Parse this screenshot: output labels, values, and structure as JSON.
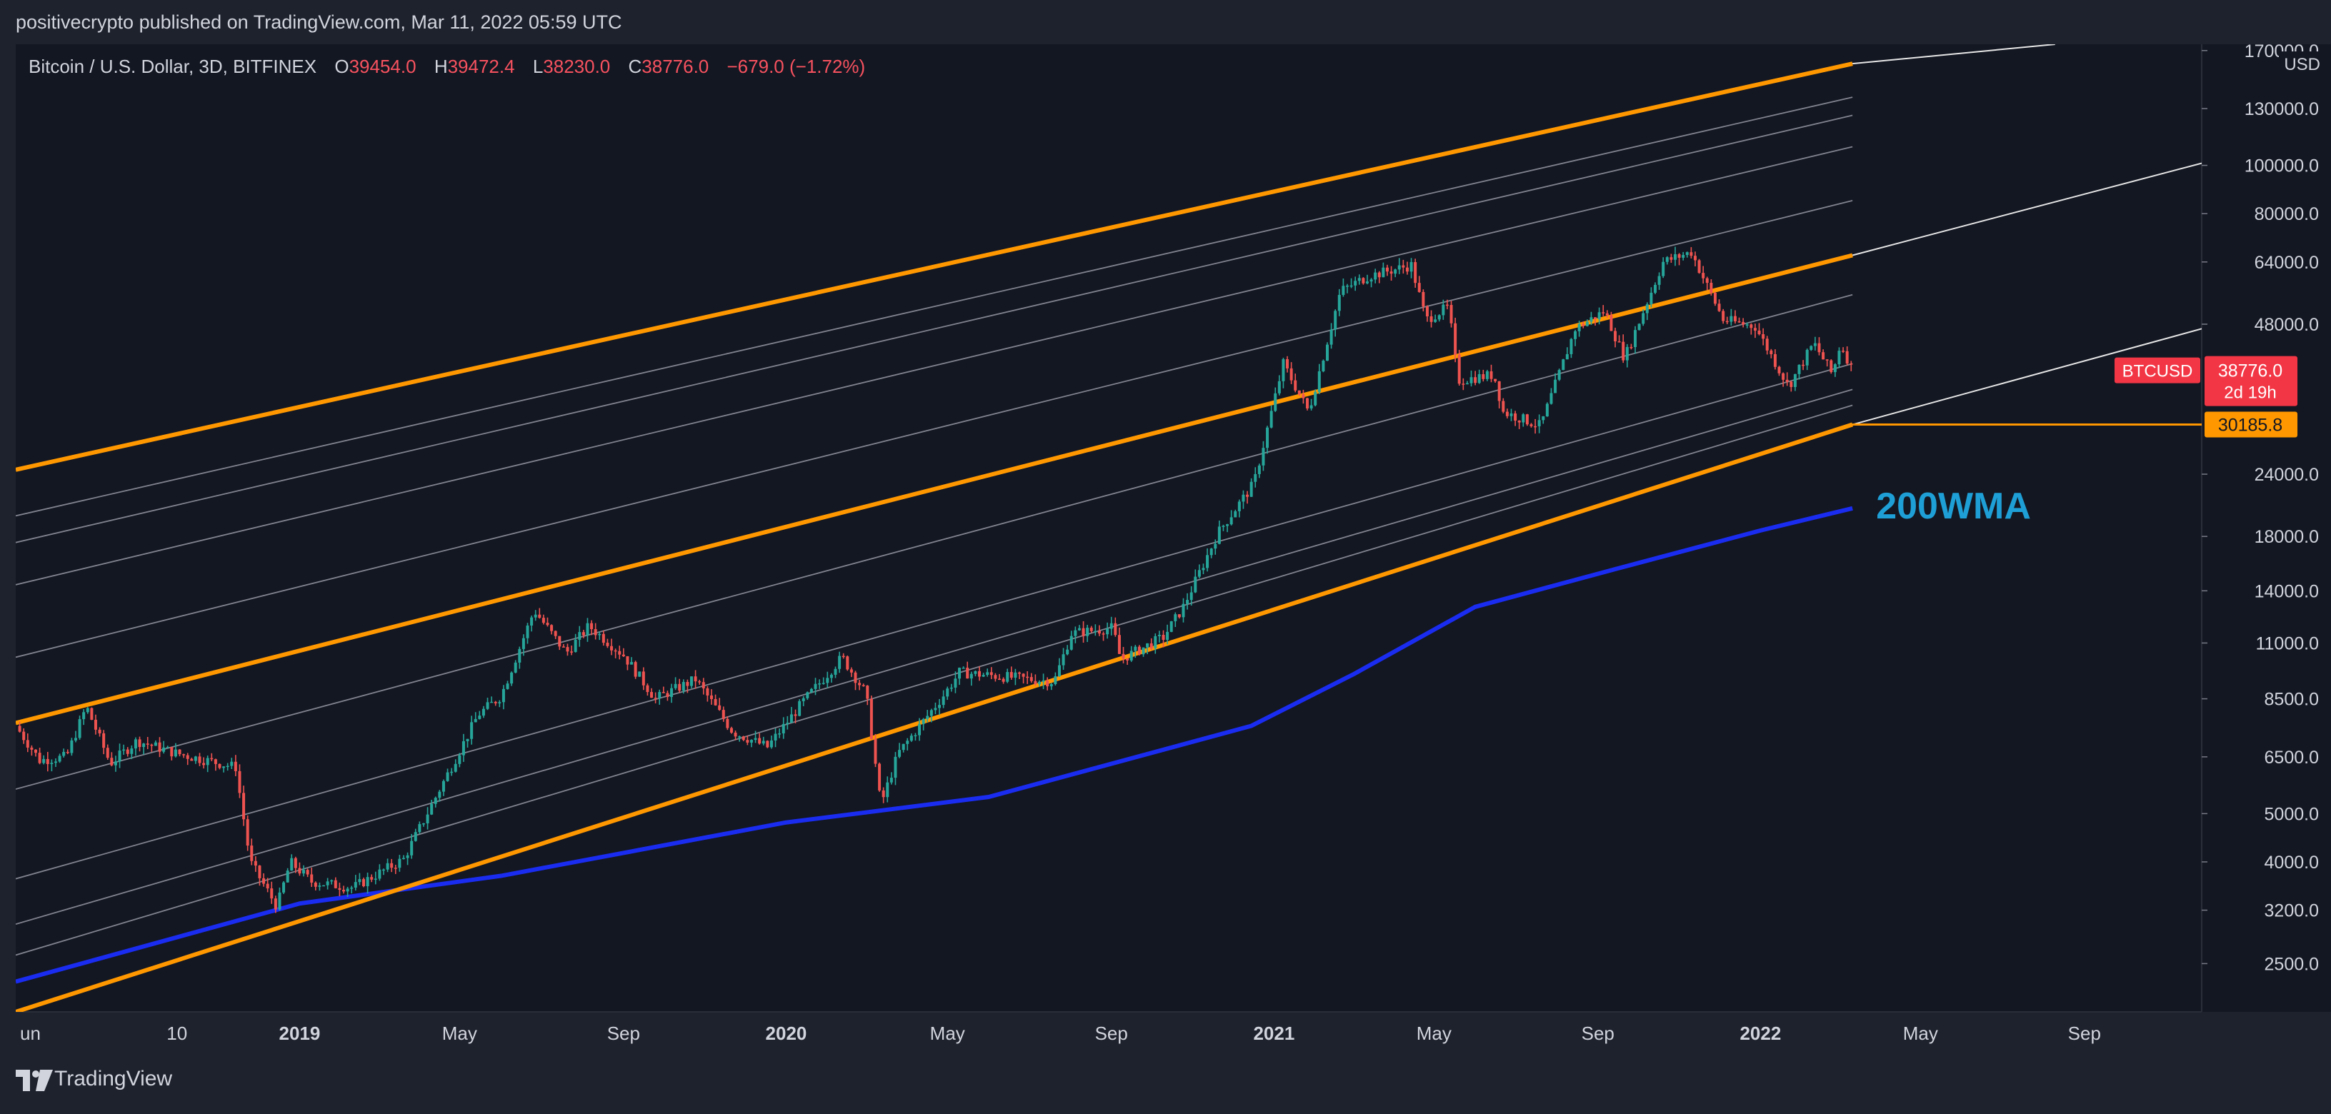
{
  "publisher_line": "positivecrypto published on TradingView.com, Mar 11, 2022 05:59 UTC",
  "symbol": {
    "title": "Bitcoin / U.S. Dollar, 3D, BITFINEX",
    "open_label": "O",
    "open": "39454.0",
    "high_label": "H",
    "high": "39472.4",
    "low_label": "L",
    "low": "38230.0",
    "close_label": "C",
    "close": "38776.0",
    "change": "−679.0 (−1.72%)"
  },
  "brand": "TradingView",
  "colors": {
    "background": "#131722",
    "frame": "#1e222d",
    "up": "#26a69a",
    "down": "#ef5350",
    "channel": "#ff9800",
    "inner_lines": "#9598a1",
    "wma": "#1a2cf0",
    "annotation": "#1e9fd6",
    "price_badge": "#f23645"
  },
  "chart_data": {
    "type": "candlestick",
    "x_axis": {
      "type": "time",
      "range": [
        "2018-06-02",
        "2022-11-28"
      ],
      "tick_labels": [
        "un",
        "10",
        "2019",
        "May",
        "Sep",
        "2020",
        "May",
        "Sep",
        "2021",
        "May",
        "Sep",
        "2022",
        "May",
        "Sep"
      ],
      "tick_dates": [
        "2018-06-01",
        "2018-10-01",
        "2019-01-01",
        "2019-05-01",
        "2019-09-01",
        "2020-01-01",
        "2020-05-01",
        "2020-09-01",
        "2021-01-01",
        "2021-05-01",
        "2021-09-01",
        "2022-01-01",
        "2022-05-01",
        "2022-09-01"
      ]
    },
    "y_axis": {
      "scale": "log",
      "unit": "USD",
      "range": [
        2000,
        175000
      ],
      "ticks": [
        2500,
        3200,
        4000,
        5000,
        6500,
        8500,
        11000,
        14000,
        18000,
        24000,
        30185.8,
        38776,
        48000,
        64000,
        80000,
        100000,
        130000,
        170000
      ],
      "tick_labels": [
        "2500.0",
        "3200.0",
        "4000.0",
        "5000.0",
        "6500.0",
        "8500.0",
        "11000.0",
        "14000.0",
        "18000.0",
        "24000.0",
        "30185.8",
        "38776.0",
        "48000.0",
        "64000.0",
        "80000.0",
        "100000.0",
        "130000.0",
        "170000.0"
      ]
    },
    "price_labels": {
      "symbol": "BTCUSD",
      "last_price": "38776.0",
      "countdown": "2d 19h",
      "channel_level": "30185.8"
    },
    "series": [
      {
        "name": "BTCUSD",
        "kind": "price_path",
        "points": [
          [
            "2018-06-02",
            7500
          ],
          [
            "2018-06-20",
            6400
          ],
          [
            "2018-07-10",
            6500
          ],
          [
            "2018-07-25",
            8200
          ],
          [
            "2018-08-12",
            6300
          ],
          [
            "2018-09-01",
            7000
          ],
          [
            "2018-10-01",
            6600
          ],
          [
            "2018-10-28",
            6350
          ],
          [
            "2018-11-14",
            6200
          ],
          [
            "2018-11-25",
            4000
          ],
          [
            "2018-12-15",
            3250
          ],
          [
            "2018-12-25",
            4000
          ],
          [
            "2019-01-10",
            3650
          ],
          [
            "2019-02-10",
            3550
          ],
          [
            "2019-03-20",
            4050
          ],
          [
            "2019-04-10",
            5200
          ],
          [
            "2019-05-15",
            7900
          ],
          [
            "2019-06-01",
            8600
          ],
          [
            "2019-06-26",
            12800
          ],
          [
            "2019-07-10",
            11400
          ],
          [
            "2019-07-20",
            10500
          ],
          [
            "2019-08-06",
            11900
          ],
          [
            "2019-09-01",
            10400
          ],
          [
            "2019-09-25",
            8500
          ],
          [
            "2019-10-25",
            9300
          ],
          [
            "2019-11-22",
            7300
          ],
          [
            "2019-12-18",
            6800
          ],
          [
            "2020-01-14",
            8400
          ],
          [
            "2020-02-12",
            10300
          ],
          [
            "2020-03-01",
            8700
          ],
          [
            "2020-03-12",
            5200
          ],
          [
            "2020-03-25",
            6600
          ],
          [
            "2020-04-29",
            8700
          ],
          [
            "2020-05-10",
            9600
          ],
          [
            "2020-06-15",
            9400
          ],
          [
            "2020-07-20",
            9200
          ],
          [
            "2020-08-02",
            11500
          ],
          [
            "2020-09-02",
            11800
          ],
          [
            "2020-09-08",
            10200
          ],
          [
            "2020-10-10",
            11300
          ],
          [
            "2020-10-25",
            13000
          ],
          [
            "2020-11-20",
            18300
          ],
          [
            "2020-12-17",
            23000
          ],
          [
            "2021-01-08",
            40000
          ],
          [
            "2021-01-27",
            32000
          ],
          [
            "2021-02-20",
            56000
          ],
          [
            "2021-03-13",
            60000
          ],
          [
            "2021-04-14",
            63000
          ],
          [
            "2021-04-25",
            49000
          ],
          [
            "2021-05-12",
            52000
          ],
          [
            "2021-05-19",
            37000
          ],
          [
            "2021-06-15",
            38000
          ],
          [
            "2021-06-22",
            32000
          ],
          [
            "2021-07-20",
            30000
          ],
          [
            "2021-08-15",
            47000
          ],
          [
            "2021-09-06",
            51000
          ],
          [
            "2021-09-21",
            41000
          ],
          [
            "2021-10-20",
            64000
          ],
          [
            "2021-11-10",
            67000
          ],
          [
            "2021-12-04",
            49000
          ],
          [
            "2021-12-28",
            47500
          ],
          [
            "2022-01-22",
            36000
          ],
          [
            "2022-02-10",
            44000
          ],
          [
            "2022-02-24",
            38000
          ],
          [
            "2022-03-02",
            44000
          ],
          [
            "2022-03-11",
            38776
          ]
        ]
      },
      {
        "name": "200WMA",
        "kind": "line",
        "points": [
          [
            "2018-06-02",
            2300
          ],
          [
            "2019-01-01",
            3300
          ],
          [
            "2019-06-01",
            3750
          ],
          [
            "2020-01-01",
            4800
          ],
          [
            "2020-06-01",
            5400
          ],
          [
            "2020-12-15",
            7500
          ],
          [
            "2021-03-01",
            9500
          ],
          [
            "2021-06-01",
            13000
          ],
          [
            "2021-09-15",
            15500
          ],
          [
            "2022-01-01",
            18500
          ],
          [
            "2022-03-11",
            20500
          ]
        ]
      }
    ],
    "channel": {
      "lines": [
        {
          "role": "upper",
          "start": [
            "2018-06-02",
            24500
          ],
          "end": [
            "2022-03-11",
            160000
          ]
        },
        {
          "role": "middle",
          "start": [
            "2018-06-02",
            7600
          ],
          "end": [
            "2022-03-11",
            66000
          ]
        },
        {
          "role": "lower",
          "start": [
            "2018-06-02",
            2000
          ],
          "end": [
            "2022-03-11",
            30185.8
          ]
        }
      ],
      "fan_lines": [
        {
          "start": [
            "2018-06-02",
            19800
          ],
          "end": [
            "2022-03-11",
            137000
          ]
        },
        {
          "start": [
            "2018-06-02",
            17500
          ],
          "end": [
            "2022-03-11",
            126000
          ]
        },
        {
          "start": [
            "2018-06-02",
            14400
          ],
          "end": [
            "2022-03-11",
            109000
          ]
        },
        {
          "start": [
            "2018-06-02",
            10300
          ],
          "end": [
            "2022-03-11",
            85000
          ]
        },
        {
          "start": [
            "2018-06-02",
            5600
          ],
          "end": [
            "2022-03-11",
            55000
          ]
        },
        {
          "start": [
            "2018-06-02",
            3700
          ],
          "end": [
            "2022-03-11",
            40000
          ]
        },
        {
          "start": [
            "2018-06-02",
            3000
          ],
          "end": [
            "2022-03-11",
            35500
          ]
        },
        {
          "start": [
            "2018-06-02",
            2600
          ],
          "end": [
            "2022-03-11",
            33000
          ]
        }
      ],
      "extensions": [
        {
          "start": [
            "2022-03-11",
            160000
          ],
          "end": [
            "2022-08-10",
            175000
          ]
        },
        {
          "start": [
            "2022-03-11",
            66000
          ],
          "end": [
            "2022-11-28",
            101000
          ]
        },
        {
          "start": [
            "2022-03-11",
            30185.8
          ],
          "end": [
            "2022-11-28",
            47000
          ]
        }
      ]
    },
    "annotations": [
      {
        "text": "200WMA",
        "date": "2022-03-18",
        "price": 20500
      }
    ]
  }
}
